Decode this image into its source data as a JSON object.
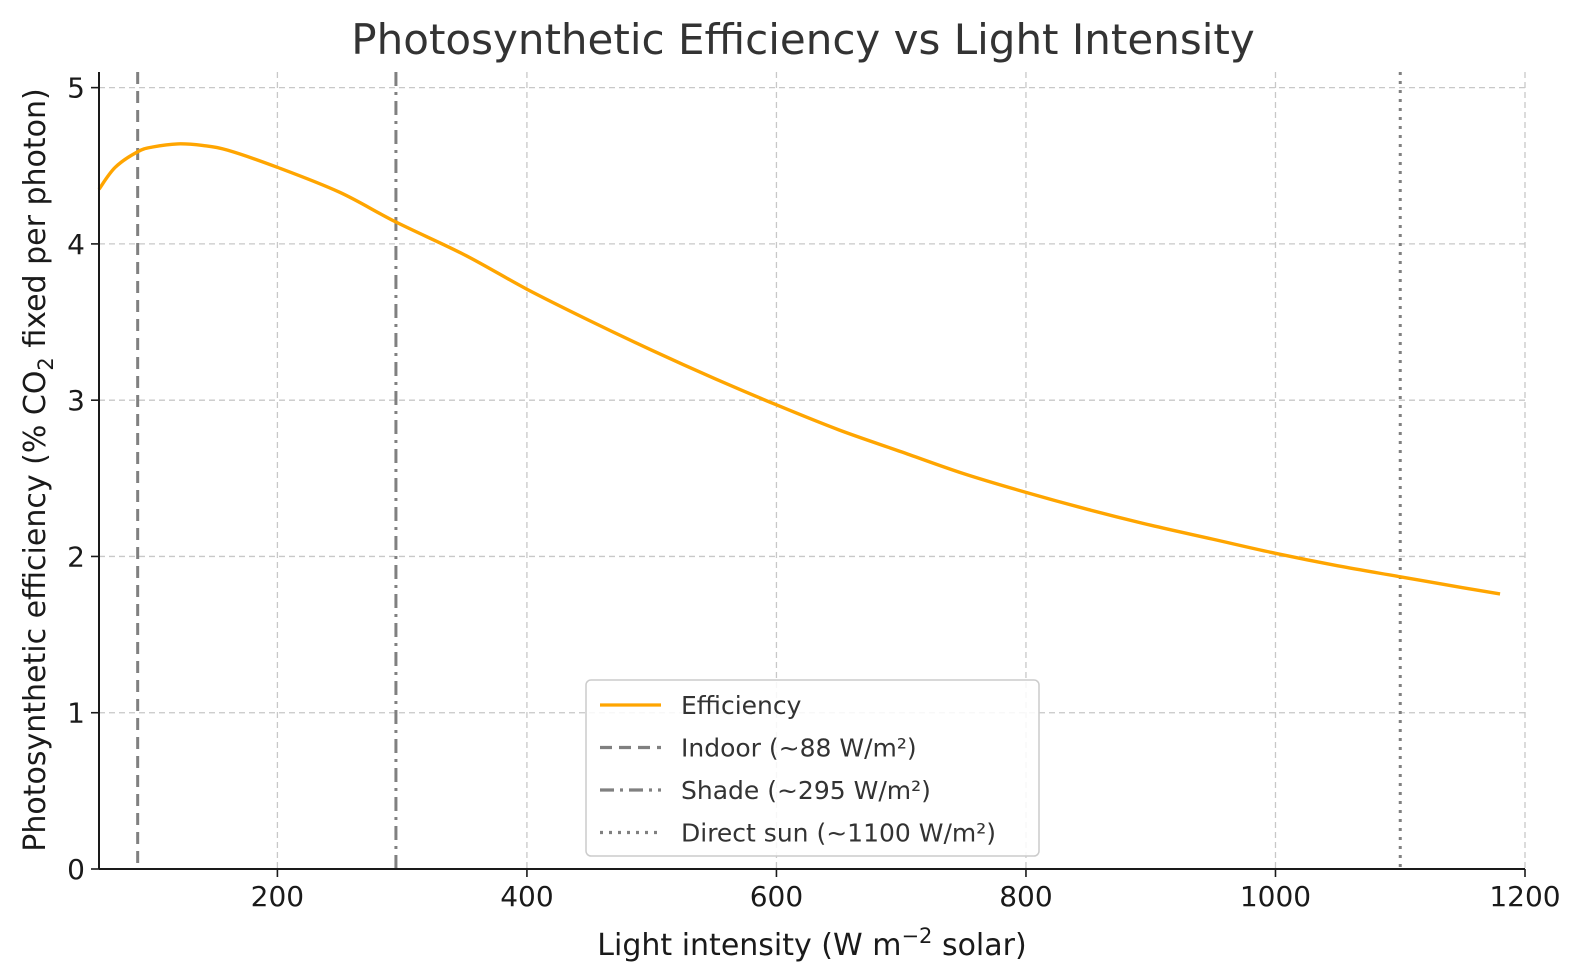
{
  "chart_data": {
    "type": "line",
    "title": "Photosynthetic Efficiency vs Light Intensity",
    "xlabel": {
      "pre": "Light intensity (W m",
      "sup": "−2",
      "post": " solar)"
    },
    "ylabel": {
      "pre": "Photosynthetic efficiency (% CO",
      "sub": "2",
      "post": " fixed per photon)"
    },
    "xlim": [
      57,
      1200
    ],
    "ylim": [
      0,
      5.1
    ],
    "xticks": [
      200,
      400,
      600,
      800,
      1000,
      1200
    ],
    "xtick_labels": [
      "200",
      "400",
      "600",
      "800",
      "1000",
      "1200"
    ],
    "yticks": [
      0,
      1,
      2,
      3,
      4,
      5
    ],
    "ytick_labels": [
      "0",
      "1",
      "2",
      "3",
      "4",
      "5"
    ],
    "grid": true,
    "legend_position": "lower-center",
    "series": [
      {
        "name": "Efficiency",
        "color": "#ffa500",
        "style": "solid",
        "x": [
          57,
          70,
          88,
          100,
          120,
          140,
          160,
          200,
          250,
          295,
          350,
          400,
          450,
          500,
          550,
          600,
          650,
          700,
          750,
          800,
          850,
          900,
          950,
          1000,
          1050,
          1100,
          1150,
          1180
        ],
        "y": [
          4.35,
          4.49,
          4.59,
          4.62,
          4.64,
          4.63,
          4.6,
          4.49,
          4.33,
          4.14,
          3.93,
          3.71,
          3.51,
          3.32,
          3.14,
          2.97,
          2.81,
          2.67,
          2.53,
          2.41,
          2.3,
          2.2,
          2.11,
          2.02,
          1.94,
          1.87,
          1.8,
          1.76
        ]
      }
    ],
    "reference_lines": [
      {
        "name": "Indoor (~88 W/m²)",
        "x": 88,
        "color": "#808080",
        "style": "dashed"
      },
      {
        "name": "Shade (~295 W/m²)",
        "x": 295,
        "color": "#808080",
        "style": "dashdot"
      },
      {
        "name": "Direct sun (~1100 W/m²)",
        "x": 1100,
        "color": "#808080",
        "style": "dotted"
      }
    ]
  }
}
